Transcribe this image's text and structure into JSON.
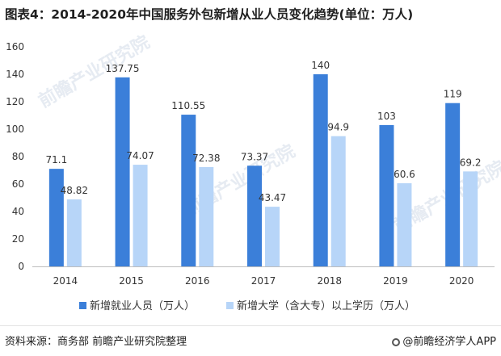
{
  "title": "图表4：2014-2020年中国服务外包新增从业人员变化趋势(单位：万人)",
  "watermark": "前瞻产业研究院",
  "chart_data": {
    "type": "bar",
    "categories": [
      "2014",
      "2015",
      "2016",
      "2017",
      "2018",
      "2019",
      "2020"
    ],
    "series": [
      {
        "name": "新增就业人员（万人）",
        "values": [
          71.1,
          137.75,
          110.55,
          73.37,
          140,
          103,
          119
        ],
        "labels": [
          "71.1",
          "137.75",
          "110.55",
          "73.37",
          "140",
          "103",
          "119"
        ],
        "color": "#3b7fd9"
      },
      {
        "name": "新增大学（含大专）以上学历（万人）",
        "values": [
          48.82,
          74.07,
          72.38,
          43.47,
          94.9,
          60.6,
          69.2
        ],
        "labels": [
          "48.82",
          "74.07",
          "72.38",
          "43.47",
          "94.9",
          "60.6",
          "69.2"
        ],
        "color": "#b7d5f8"
      }
    ],
    "yticks": [
      "0",
      "20",
      "40",
      "60",
      "80",
      "100",
      "120",
      "140",
      "160"
    ],
    "ylim": [
      0,
      160
    ],
    "grid": false,
    "legend": "bottom-left"
  },
  "footer": {
    "source": "资料来源：商务部 前瞻产业研究院整理",
    "credit": "@前瞻经济学人APP"
  }
}
